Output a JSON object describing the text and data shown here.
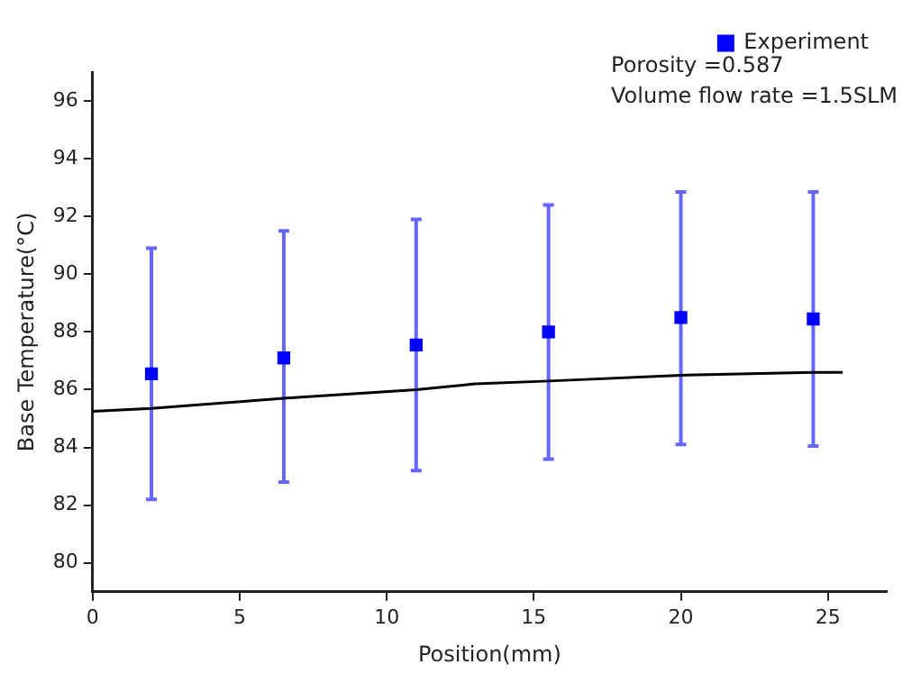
{
  "chart_data": {
    "type": "scatter",
    "xlabel": "Position(mm)",
    "ylabel": "Base Temperature(°C)",
    "xlim": [
      0,
      27
    ],
    "xticks": [
      0,
      5,
      10,
      15,
      20,
      25
    ],
    "ylim": [
      79,
      97
    ],
    "yticks": [
      80,
      82,
      84,
      86,
      88,
      90,
      92,
      94,
      96
    ],
    "grid": false,
    "legend": "top right",
    "marker": "square",
    "annotations": [
      "Porosity =0.587",
      "Volume flow rate =1.5SLM"
    ],
    "series": [
      {
        "name": "Experiment",
        "type": "scatter",
        "color": "#0000ff",
        "x": [
          2,
          6.5,
          11,
          15.5,
          20,
          24.5
        ],
        "values": [
          86.55,
          87.1,
          87.55,
          88.0,
          88.5,
          88.45
        ],
        "errors": [
          [
            82.2,
            90.9
          ],
          [
            82.8,
            91.5
          ],
          [
            83.2,
            91.9
          ],
          [
            83.6,
            92.4
          ],
          [
            84.1,
            92.85
          ],
          [
            84.05,
            92.85
          ]
        ]
      },
      {
        "type": "line",
        "color": "#000000",
        "marker": "none",
        "x": [
          0,
          2,
          6.5,
          11,
          13,
          15.5,
          20,
          24.5,
          25.5
        ],
        "values": [
          85.25,
          85.35,
          85.7,
          86.0,
          86.2,
          86.3,
          86.5,
          86.6,
          86.6
        ]
      }
    ]
  }
}
